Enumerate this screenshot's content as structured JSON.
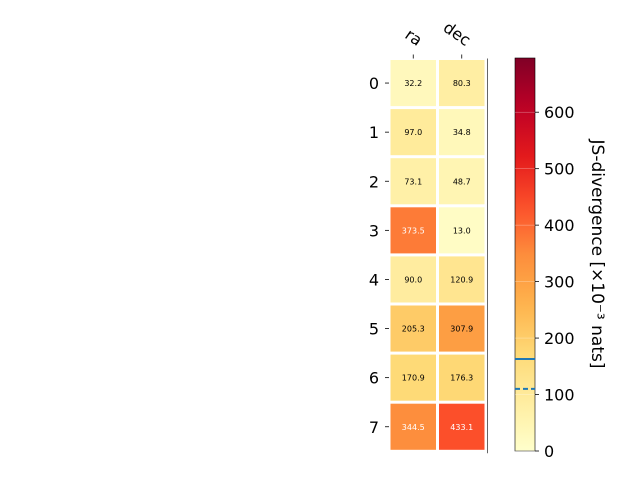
{
  "chart_data": {
    "type": "heatmap",
    "columns": [
      "ra",
      "dec"
    ],
    "rows": [
      "0",
      "1",
      "2",
      "3",
      "4",
      "5",
      "6",
      "7"
    ],
    "values": [
      [
        32.2,
        80.3
      ],
      [
        97.0,
        34.8
      ],
      [
        73.1,
        48.7
      ],
      [
        373.5,
        13.0
      ],
      [
        90.0,
        120.9
      ],
      [
        205.3,
        307.9
      ],
      [
        170.9,
        176.3
      ],
      [
        344.5,
        433.1
      ]
    ],
    "value_labels": [
      [
        "32.2",
        "80.3"
      ],
      [
        "97.0",
        "34.8"
      ],
      [
        "73.1",
        "48.7"
      ],
      [
        "373.5",
        "13.0"
      ],
      [
        "90.0",
        "120.9"
      ],
      [
        "205.3",
        "307.9"
      ],
      [
        "170.9",
        "176.3"
      ],
      [
        "344.5",
        "433.1"
      ]
    ],
    "colorbar": {
      "label": "JS-divergence [×10⁻³ nats]",
      "range": [
        0,
        696
      ],
      "ticks": [
        "0",
        "100",
        "200",
        "300",
        "400",
        "500",
        "600"
      ],
      "tick_values": [
        0,
        100,
        200,
        300,
        400,
        500,
        600
      ],
      "colormap": "YlOrRd",
      "reference_lines": [
        {
          "value": 163,
          "style": "solid",
          "color": "#1f77b4"
        },
        {
          "value": 110,
          "style": "dashed",
          "color": "#1f77b4"
        }
      ]
    }
  }
}
